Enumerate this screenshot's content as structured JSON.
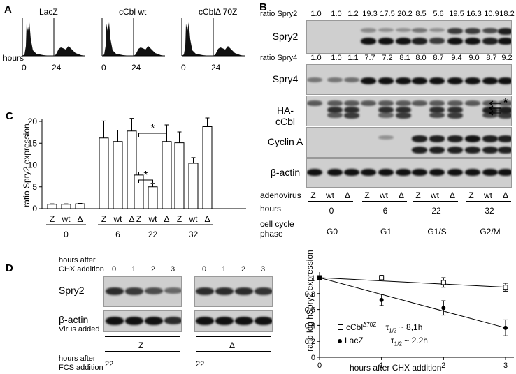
{
  "panelA": {
    "label": "A",
    "conditions": [
      "LacZ",
      "cCbl wt",
      "cCblΔ 70Z"
    ],
    "hours_label": "hours",
    "timepoints": [
      "0",
      "24"
    ]
  },
  "panelB": {
    "label": "B",
    "ratio_spry2_label": "ratio Spry2",
    "ratio_spry2": [
      "1.0",
      "1.0",
      "1.2",
      "19.3",
      "17.5",
      "20.2",
      "8.5",
      "5.6",
      "19.5",
      "16.3",
      "10.9",
      "18.2"
    ],
    "ratio_spry4_label": "ratio Spry4",
    "ratio_spry4": [
      "1.0",
      "1.0",
      "1.1",
      "7.7",
      "7.2",
      "8.1",
      "8.0",
      "8.7",
      "9.4",
      "9.0",
      "8.7",
      "9.2"
    ],
    "blots": [
      "Spry2",
      "Spry4",
      "HA-cCbl",
      "Cyclin A",
      "β-actin"
    ],
    "asterisk": "*",
    "adenovirus_label": "adenovirus",
    "virus": [
      "Z",
      "wt",
      "Δ"
    ],
    "hours_label": "hours",
    "hours": [
      "0",
      "6",
      "22",
      "32"
    ],
    "phase_label_1": "cell cycle",
    "phase_label_2": "phase",
    "phases": [
      "G0",
      "G1",
      "G1/S",
      "G2/M"
    ]
  },
  "panelC": {
    "label": "C",
    "ylabel": "ratio Spry2 expression",
    "yticks": [
      "0",
      "5",
      "10",
      "15",
      "20"
    ],
    "groups": [
      "0",
      "6",
      "22",
      "32"
    ],
    "virus": [
      "Z",
      "wt",
      "Δ"
    ],
    "sig": "*"
  },
  "chart_data": [
    {
      "type": "bar",
      "title": "",
      "ylabel": "ratio Spry2 expression",
      "ylim": [
        0,
        20
      ],
      "categories": [
        "0",
        "6",
        "22",
        "32"
      ],
      "series": [
        {
          "name": "Z",
          "values": [
            1.0,
            16.2,
            7.7,
            15.1
          ],
          "errors": [
            0.1,
            3.9,
            0.7,
            2.5
          ]
        },
        {
          "name": "wt",
          "values": [
            1.0,
            15.4,
            5.0,
            10.4
          ],
          "errors": [
            0.1,
            2.6,
            0.8,
            1.3
          ]
        },
        {
          "name": "Δ",
          "values": [
            1.1,
            17.8,
            15.4,
            18.8
          ],
          "errors": [
            0.1,
            2.9,
            3.8,
            2.0
          ]
        }
      ]
    },
    {
      "type": "scatter",
      "title": "",
      "xlabel": "hours after CHX addition",
      "ylabel": "ratio log hSpry2 expression",
      "xlim": [
        0,
        3.2
      ],
      "ylim": [
        0.0,
        1.05
      ],
      "series": [
        {
          "name": "cCblΔ70Z",
          "x": [
            0,
            1,
            2,
            3
          ],
          "y": [
            1.0,
            1.0,
            0.94,
            0.88
          ],
          "errors": [
            0.02,
            0.03,
            0.06,
            0.05
          ],
          "half_life": "τ",
          "half_sub": "1/2",
          "half_value": " ~ 8,1h"
        },
        {
          "name": "LacZ",
          "x": [
            0,
            1,
            2,
            3
          ],
          "y": [
            1.0,
            0.72,
            0.62,
            0.37
          ],
          "errors": [
            0.02,
            0.07,
            0.09,
            0.1
          ],
          "half_life": "τ",
          "half_sub": "1/2",
          "half_value": " ~ 2.2h"
        }
      ]
    }
  ],
  "panelD": {
    "label": "D",
    "hours_after_chx_1": "hours after",
    "hours_after_chx_2": "CHX addition",
    "lanes": [
      "0",
      "1",
      "2",
      "3"
    ],
    "blots": [
      "Spry2",
      "β-actin"
    ],
    "virus_label": "Virus added",
    "virus": [
      "Z",
      "Δ"
    ],
    "fcs_label_1": "hours after",
    "fcs_label_2": "FCS addition",
    "fcs_hours": [
      "22",
      "22"
    ],
    "legend_cbl_base": "cCbl",
    "legend_cbl_sup": "Δ70Z",
    "legend_lacz": "LacZ",
    "xlabel": "hours after CHX addition",
    "ylabel": "ratio log hSpry2 expression",
    "yticks": [
      "0",
      "0.2",
      "0.4",
      "0.6",
      "0.8",
      "1"
    ],
    "xticks": [
      "0",
      "1",
      "2",
      "3"
    ]
  }
}
